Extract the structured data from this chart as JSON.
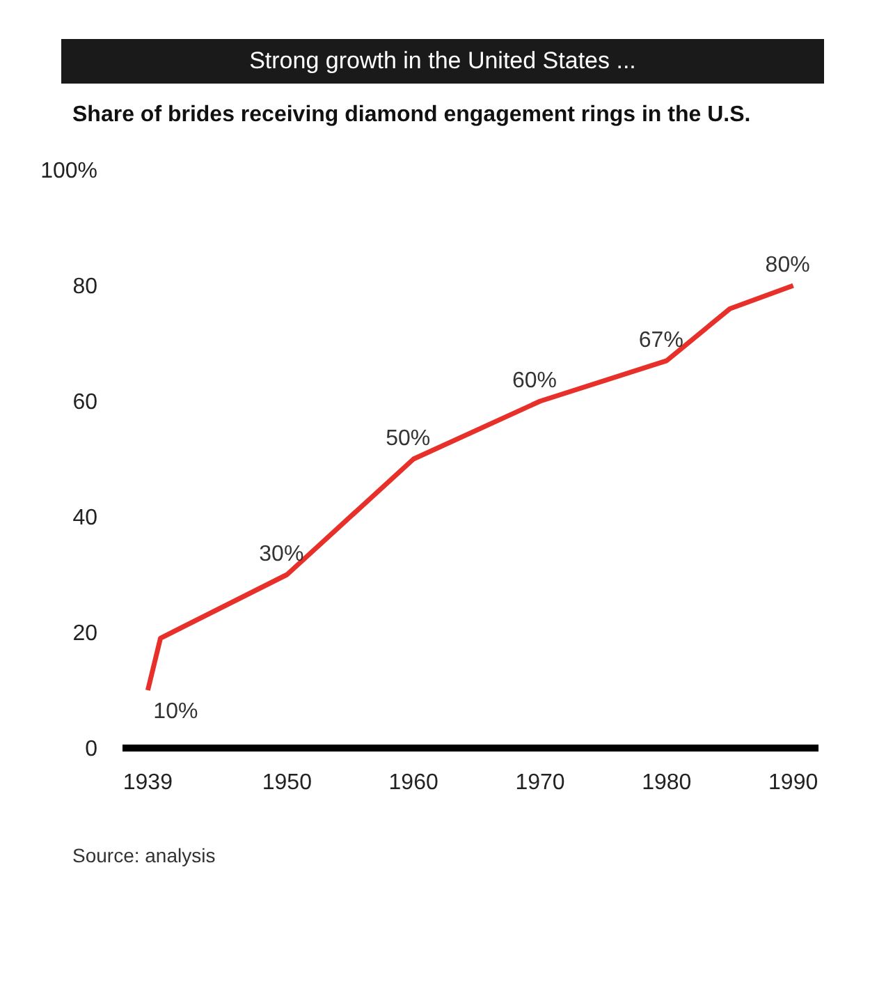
{
  "chart_data": {
    "type": "line",
    "title": "Strong growth in the United States ...",
    "subtitle": "Share of brides receiving diamond engagement rings in the U.S.",
    "x": [
      1939,
      1940,
      1950,
      1960,
      1970,
      1980,
      1985,
      1990
    ],
    "series": [
      {
        "color": "#e8302a",
        "values": [
          10,
          19,
          30,
          50,
          60,
          67,
          76,
          80
        ],
        "value_labels": [
          "10%",
          null,
          "30%",
          "50%",
          "60%",
          "67%",
          null,
          "80%"
        ]
      }
    ],
    "xlim": [
      1937,
      1992
    ],
    "xticks": [
      1939,
      1950,
      1960,
      1970,
      1980,
      1990
    ],
    "ylim": [
      0,
      100
    ],
    "yticks": [
      0,
      20,
      40,
      60,
      80,
      {
        "value": 100,
        "label": "100%"
      }
    ],
    "grid": false,
    "legend": false,
    "marker": "none",
    "line_style": "solid",
    "annotations": [
      "Source: analysis"
    ]
  }
}
